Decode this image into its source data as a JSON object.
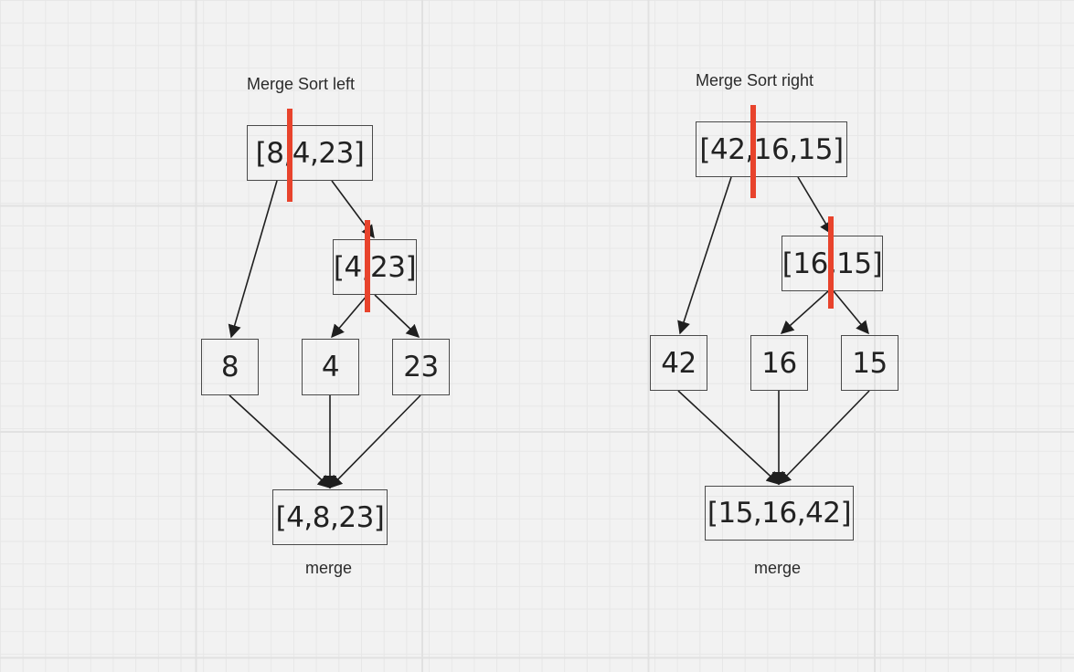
{
  "left": {
    "title": "Merge Sort left",
    "root": "[8,4,23]",
    "split": "[4,23]",
    "leaves": [
      "8",
      "4",
      "23"
    ],
    "result": "[4,8,23]",
    "result_label": "merge"
  },
  "right": {
    "title": "Merge Sort right",
    "root": "[42,16,15]",
    "split": "[16,15]",
    "leaves": [
      "42",
      "16",
      "15"
    ],
    "result": "[15,16,42]",
    "result_label": "merge"
  },
  "colors": {
    "split_marker": "#e8432c",
    "node_border": "#4a4a4a",
    "edge": "#1f1f1f",
    "background": "#f2f2f2"
  }
}
